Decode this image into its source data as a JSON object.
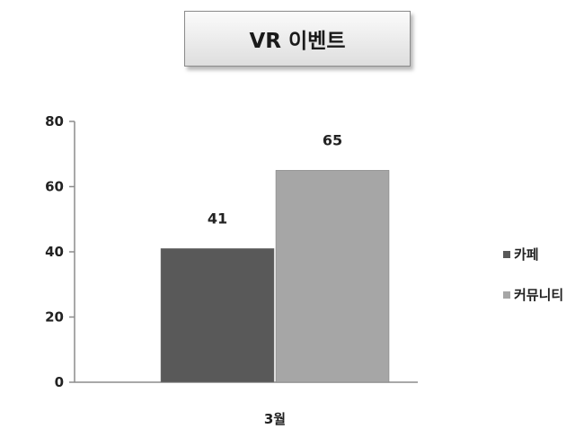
{
  "chart_data": {
    "type": "bar",
    "title": "VR 이벤트",
    "categories": [
      "3월"
    ],
    "series": [
      {
        "name": "카페",
        "values": [
          41
        ],
        "color": "#595959"
      },
      {
        "name": "커뮤니티",
        "values": [
          65
        ],
        "color": "#a6a6a6"
      }
    ],
    "ylim": [
      0,
      80
    ],
    "yticks": [
      0,
      20,
      40,
      60,
      80
    ],
    "xlabel": "",
    "ylabel": "",
    "grid": false,
    "legend_position": "right",
    "data_labels": true
  }
}
